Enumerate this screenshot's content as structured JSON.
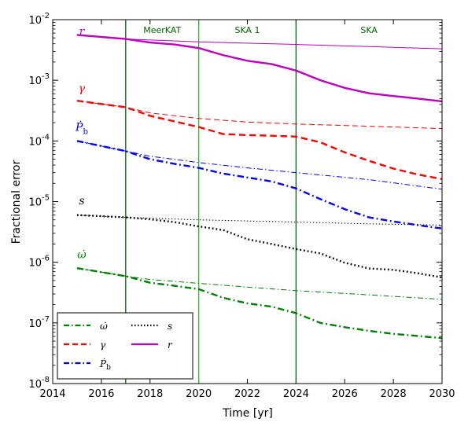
{
  "chart_data": {
    "type": "line",
    "xlabel": "Time  [yr]",
    "ylabel": "Fractional error",
    "xlim": [
      2014,
      2030
    ],
    "ylim": [
      1e-08,
      0.01
    ],
    "yscale": "log",
    "xticks": [
      "2014",
      "2016",
      "2018",
      "2020",
      "2022",
      "2024",
      "2026",
      "2028",
      "2030"
    ],
    "yticks": [
      "10^-8",
      "10^-7",
      "10^-6",
      "10^-5",
      "10^-4",
      "10^-3",
      "10^-2"
    ],
    "vlines": [
      {
        "x": 2017,
        "color": "#006400"
      },
      {
        "x": 2020,
        "color": "#2db52d"
      },
      {
        "x": 2024,
        "color": "#006400"
      }
    ],
    "regions": [
      {
        "label": "MeerKAT",
        "x": 2018.5
      },
      {
        "label": "SKA 1",
        "x": 2022
      },
      {
        "label": "SKA",
        "x": 2027
      }
    ],
    "legend": {
      "position": "lower-left",
      "columns": 2
    },
    "series": [
      {
        "key": "r",
        "name": "r",
        "color": "#bf00bf",
        "dash": "solid",
        "label_y": 0.0065,
        "thin": [
          [
            2015,
            0.0056
          ],
          [
            2017,
            0.0048
          ],
          [
            2020,
            0.0043
          ],
          [
            2024,
            0.0039
          ],
          [
            2027,
            0.0036
          ],
          [
            2030,
            0.0033
          ]
        ],
        "thick": [
          [
            2015,
            0.0056
          ],
          [
            2017,
            0.0048
          ],
          [
            2018,
            0.0042
          ],
          [
            2019,
            0.0039
          ],
          [
            2020,
            0.0034
          ],
          [
            2021,
            0.0026
          ],
          [
            2022,
            0.0021
          ],
          [
            2023,
            0.00185
          ],
          [
            2024,
            0.00145
          ],
          [
            2025,
            0.001
          ],
          [
            2026,
            0.00075
          ],
          [
            2027,
            0.00061
          ],
          [
            2028,
            0.00055
          ],
          [
            2029,
            0.0005
          ],
          [
            2030,
            0.00045
          ]
        ]
      },
      {
        "key": "gamma",
        "name": "γ",
        "color": "#ff0000",
        "dash": "dashed",
        "label_y": 0.00075,
        "thin": [
          [
            2015,
            0.00046
          ],
          [
            2017,
            0.00036
          ],
          [
            2018,
            0.00029
          ],
          [
            2020,
            0.000235
          ],
          [
            2022,
            0.000205
          ],
          [
            2024,
            0.00019
          ],
          [
            2027,
            0.000175
          ],
          [
            2030,
            0.00016
          ]
        ],
        "thick": [
          [
            2015,
            0.00046
          ],
          [
            2017,
            0.00036
          ],
          [
            2018,
            0.00026
          ],
          [
            2019,
            0.00021
          ],
          [
            2020,
            0.00017
          ],
          [
            2021,
            0.00013
          ],
          [
            2022,
            0.000125
          ],
          [
            2023,
            0.000122
          ],
          [
            2024,
            0.000118
          ],
          [
            2025,
            9.5e-05
          ],
          [
            2026,
            6.5e-05
          ],
          [
            2027,
            4.7e-05
          ],
          [
            2028,
            3.5e-05
          ],
          [
            2029,
            2.8e-05
          ],
          [
            2030,
            2.35e-05
          ]
        ]
      },
      {
        "key": "pbdot",
        "name": "Ṗ",
        "sub": "b",
        "color": "#0000ff",
        "dash": "dashdot",
        "label_y": 0.00017,
        "thin": [
          [
            2015,
            0.0001
          ],
          [
            2017,
            6.8e-05
          ],
          [
            2018,
            5.6e-05
          ],
          [
            2020,
            4.4e-05
          ],
          [
            2022,
            3.6e-05
          ],
          [
            2024,
            3e-05
          ],
          [
            2027,
            2.3e-05
          ],
          [
            2030,
            1.6e-05
          ]
        ],
        "thick": [
          [
            2015,
            0.0001
          ],
          [
            2017,
            6.8e-05
          ],
          [
            2018,
            5e-05
          ],
          [
            2019,
            4.2e-05
          ],
          [
            2020,
            3.6e-05
          ],
          [
            2021,
            2.9e-05
          ],
          [
            2022,
            2.5e-05
          ],
          [
            2023,
            2.15e-05
          ],
          [
            2024,
            1.65e-05
          ],
          [
            2025,
            1.1e-05
          ],
          [
            2026,
            7.5e-06
          ],
          [
            2027,
            5.5e-06
          ],
          [
            2028,
            4.7e-06
          ],
          [
            2029,
            4.1e-06
          ],
          [
            2030,
            3.6e-06
          ]
        ]
      },
      {
        "key": "s",
        "name": "s",
        "color": "#000000",
        "dash": "dotted",
        "label_y": 1.05e-05,
        "thin": [
          [
            2015,
            6e-06
          ],
          [
            2017,
            5.5e-06
          ],
          [
            2020,
            5e-06
          ],
          [
            2024,
            4.6e-06
          ],
          [
            2027,
            4.3e-06
          ],
          [
            2030,
            4.1e-06
          ]
        ],
        "thick": [
          [
            2015,
            6e-06
          ],
          [
            2017,
            5.5e-06
          ],
          [
            2018,
            5.1e-06
          ],
          [
            2019,
            4.6e-06
          ],
          [
            2020,
            3.9e-06
          ],
          [
            2021,
            3.4e-06
          ],
          [
            2022,
            2.4e-06
          ],
          [
            2023,
            2e-06
          ],
          [
            2024,
            1.65e-06
          ],
          [
            2025,
            1.4e-06
          ],
          [
            2026,
            9.8e-07
          ],
          [
            2027,
            7.9e-07
          ],
          [
            2028,
            7.5e-07
          ],
          [
            2029,
            6.6e-07
          ],
          [
            2030,
            5.6e-07
          ]
        ]
      },
      {
        "key": "omdot",
        "name": "ω̇",
        "color": "#008000",
        "dash": "dashdot",
        "label_y": 1.35e-06,
        "thin": [
          [
            2015,
            8e-07
          ],
          [
            2017,
            5.9e-07
          ],
          [
            2018,
            5.2e-07
          ],
          [
            2020,
            4.5e-07
          ],
          [
            2022,
            3.9e-07
          ],
          [
            2024,
            3.4e-07
          ],
          [
            2027,
            2.9e-07
          ],
          [
            2030,
            2.45e-07
          ]
        ],
        "thick": [
          [
            2015,
            8e-07
          ],
          [
            2017,
            5.9e-07
          ],
          [
            2018,
            4.6e-07
          ],
          [
            2019,
            4.1e-07
          ],
          [
            2020,
            3.6e-07
          ],
          [
            2021,
            2.6e-07
          ],
          [
            2022,
            2.1e-07
          ],
          [
            2023,
            1.85e-07
          ],
          [
            2024,
            1.45e-07
          ],
          [
            2025,
            1e-07
          ],
          [
            2026,
            8.5e-08
          ],
          [
            2027,
            7.4e-08
          ],
          [
            2028,
            6.6e-08
          ],
          [
            2029,
            6.1e-08
          ],
          [
            2030,
            5.6e-08
          ]
        ]
      }
    ],
    "legend_order": [
      "omdot",
      "gamma",
      "pbdot",
      "s",
      "r"
    ]
  }
}
